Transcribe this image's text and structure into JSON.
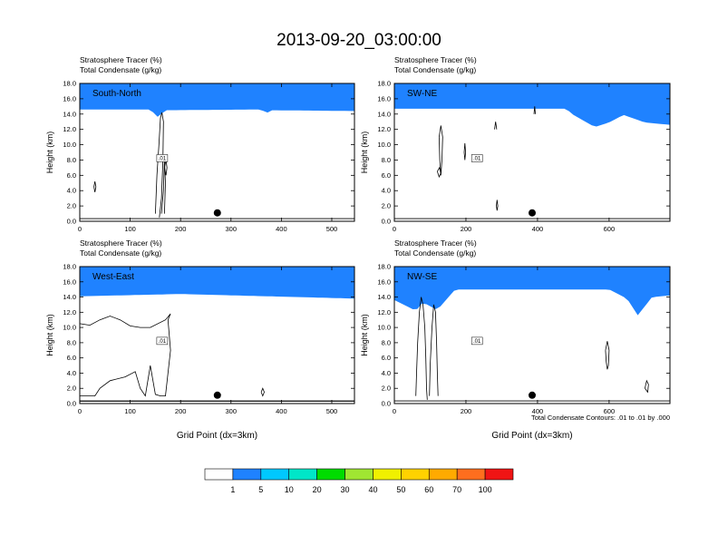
{
  "title": "2013-09-20_03:00:00",
  "colors": {
    "scale": [
      "#ffffff",
      "#1f82ff",
      "#00c8ff",
      "#00e6c8",
      "#00dc00",
      "#a0e632",
      "#f0f000",
      "#ffd200",
      "#ffaa00",
      "#ff6e1e",
      "#f01414"
    ],
    "contour": "#000000",
    "panel_label": "#ffffff"
  },
  "colorbar": {
    "labels": [
      "1",
      "5",
      "10",
      "20",
      "30",
      "40",
      "50",
      "60",
      "70",
      "100"
    ]
  },
  "footnote": "Total Condensate Contours: .01 to .01 by .000",
  "chart_data": [
    {
      "type": "heatmap",
      "label": "South-North",
      "subtitle_line1": "Stratosphere Tracer   (%)",
      "subtitle_line2": "Total Condensate   (g/kg)",
      "ylabel": "Height (km)",
      "xlabel": "",
      "xlim": [
        0,
        545
      ],
      "ylim": [
        0,
        18
      ],
      "xticks": [
        "0",
        "100",
        "200",
        "300",
        "400",
        "500"
      ],
      "yticks": [
        "0.0",
        "2.0",
        "4.0",
        "6.0",
        "8.0",
        "10.0",
        "12.0",
        "14.0",
        "16.0",
        "18.0"
      ],
      "tropopause_km": [
        [
          0,
          14.6
        ],
        [
          140,
          14.6
        ],
        [
          155,
          13.6
        ],
        [
          170,
          14.5
        ],
        [
          360,
          14.6
        ],
        [
          370,
          14.1
        ],
        [
          380,
          14.5
        ],
        [
          545,
          14.4
        ]
      ],
      "contour_label": ".01",
      "marker": {
        "x": 273,
        "y": 1.1
      }
    },
    {
      "type": "heatmap",
      "label": "SW-NE",
      "subtitle_line1": "Stratosphere Tracer   (%)",
      "subtitle_line2": "Total Condensate   (g/kg)",
      "ylabel": "Height (km)",
      "xlabel": "",
      "xlim": [
        0,
        770
      ],
      "ylim": [
        0,
        18
      ],
      "xticks": [
        "0",
        "200",
        "400",
        "600"
      ],
      "yticks": [
        "0.0",
        "2.0",
        "4.0",
        "6.0",
        "8.0",
        "10.0",
        "12.0",
        "14.0",
        "16.0",
        "18.0"
      ],
      "tropopause_km": [
        [
          0,
          14.7
        ],
        [
          480,
          14.7
        ],
        [
          500,
          13.9
        ],
        [
          560,
          12.3
        ],
        [
          600,
          12.9
        ],
        [
          640,
          13.9
        ],
        [
          700,
          12.9
        ],
        [
          770,
          12.6
        ]
      ],
      "contour_label": ".01",
      "marker": {
        "x": 385,
        "y": 1.1
      }
    },
    {
      "type": "heatmap",
      "label": "West-East",
      "subtitle_line1": "Stratosphere Tracer   (%)",
      "subtitle_line2": "Total Condensate   (g/kg)",
      "ylabel": "Height (km)",
      "xlabel": "Grid Point (dx=3km)",
      "xlim": [
        0,
        545
      ],
      "ylim": [
        0,
        18
      ],
      "xticks": [
        "0",
        "100",
        "200",
        "300",
        "400",
        "500"
      ],
      "yticks": [
        "0.0",
        "2.0",
        "4.0",
        "6.0",
        "8.0",
        "10.0",
        "12.0",
        "14.0",
        "16.0",
        "18.0"
      ],
      "tropopause_km": [
        [
          0,
          14.1
        ],
        [
          200,
          14.4
        ],
        [
          545,
          13.8
        ]
      ],
      "contour_label": ".01",
      "marker": {
        "x": 273,
        "y": 1.1
      }
    },
    {
      "type": "heatmap",
      "label": "NW-SE",
      "subtitle_line1": "Stratosphere Tracer   (%)",
      "subtitle_line2": "Total Condensate   (g/kg)",
      "ylabel": "Height (km)",
      "xlabel": "Grid Point (dx=3km)",
      "xlim": [
        0,
        770
      ],
      "ylim": [
        0,
        18
      ],
      "xticks": [
        "0",
        "200",
        "400",
        "600"
      ],
      "yticks": [
        "0.0",
        "2.0",
        "4.0",
        "6.0",
        "8.0",
        "10.0",
        "12.0",
        "14.0",
        "16.0",
        "18.0"
      ],
      "tropopause_km": [
        [
          0,
          13.6
        ],
        [
          60,
          12.2
        ],
        [
          80,
          13.3
        ],
        [
          120,
          12.3
        ],
        [
          170,
          15.0
        ],
        [
          600,
          15.0
        ],
        [
          650,
          13.8
        ],
        [
          680,
          11.6
        ],
        [
          720,
          14.0
        ],
        [
          770,
          14.2
        ]
      ],
      "contour_label": ".01",
      "marker": {
        "x": 385,
        "y": 1.1
      }
    }
  ]
}
